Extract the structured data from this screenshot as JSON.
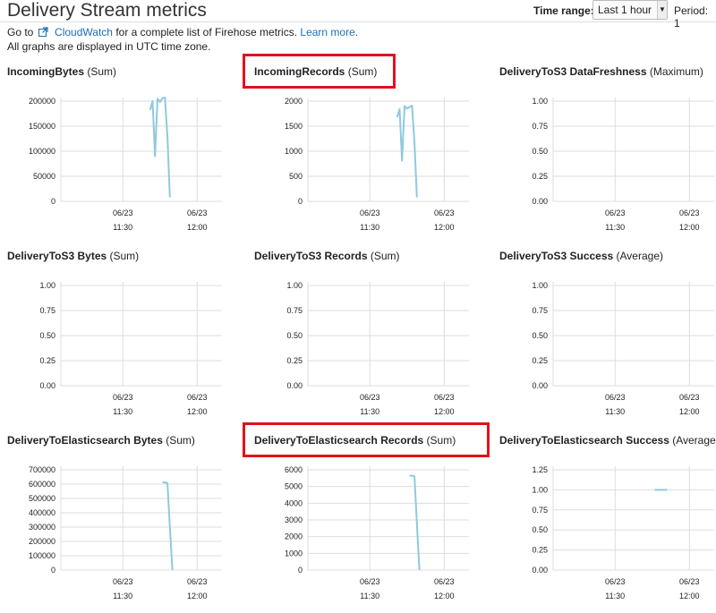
{
  "header": {
    "title": "Delivery Stream metrics",
    "time_range_label": "Time range:",
    "time_range_value": "Last 1 hour",
    "period_label": "Period:",
    "period_value": "1"
  },
  "intro": {
    "goto_prefix": "Go to",
    "cloudwatch_link": "CloudWatch",
    "goto_suffix": "for a complete list of Firehose metrics.",
    "learn_more_link": "Learn more.",
    "utc_note": "All graphs are displayed in UTC time zone."
  },
  "colors": {
    "line": "#8ec9e0",
    "grid": "#dddddd",
    "highlight": "#e0131b",
    "link": "#1a6eb5"
  },
  "x_axis": {
    "ticks": [
      {
        "date": "06/23",
        "time": "11:30"
      },
      {
        "date": "06/23",
        "time": "12:00"
      }
    ]
  },
  "panels": [
    {
      "metric": "IncomingBytes",
      "stat": "(Sum)",
      "highlighted": false
    },
    {
      "metric": "IncomingRecords",
      "stat": "(Sum)",
      "highlighted": true
    },
    {
      "metric": "DeliveryToS3 DataFreshness",
      "stat": "(Maximum)",
      "highlighted": false
    },
    {
      "metric": "DeliveryToS3 Bytes",
      "stat": "(Sum)",
      "highlighted": false
    },
    {
      "metric": "DeliveryToS3 Records",
      "stat": "(Sum)",
      "highlighted": false
    },
    {
      "metric": "DeliveryToS3 Success",
      "stat": "(Average)",
      "highlighted": false
    },
    {
      "metric": "DeliveryToElasticsearch Bytes",
      "stat": "(Sum)",
      "highlighted": false
    },
    {
      "metric": "DeliveryToElasticsearch Records",
      "stat": "(Sum)",
      "highlighted": true
    },
    {
      "metric": "DeliveryToElasticsearch Success",
      "stat": "(Average)",
      "highlighted": false
    }
  ],
  "chart_data": [
    {
      "type": "line",
      "title": "IncomingBytes (Sum)",
      "x_ticks": [
        "06/23 11:30",
        "06/23 12:00"
      ],
      "y_ticks": [
        "0",
        "50000",
        "100000",
        "150000",
        "200000"
      ],
      "ylim": [
        0,
        200000
      ],
      "series": [
        {
          "x": [
            "11:41",
            "11:42",
            "11:43",
            "11:44",
            "11:45",
            "11:46",
            "11:47",
            "11:48",
            "11:49"
          ],
          "y": [
            182000,
            200000,
            90000,
            205000,
            198000,
            206000,
            207000,
            128000,
            8000
          ]
        }
      ]
    },
    {
      "type": "line",
      "title": "IncomingRecords (Sum)",
      "x_ticks": [
        "06/23 11:30",
        "06/23 12:00"
      ],
      "y_ticks": [
        "0",
        "500",
        "1000",
        "1500",
        "2000"
      ],
      "ylim": [
        0,
        2000
      ],
      "series": [
        {
          "x": [
            "11:41",
            "11:42",
            "11:43",
            "11:44",
            "11:45",
            "11:46",
            "11:47",
            "11:48",
            "11:49"
          ],
          "y": [
            1680,
            1840,
            810,
            1900,
            1850,
            1880,
            1910,
            1180,
            80
          ]
        }
      ]
    },
    {
      "type": "line",
      "title": "DeliveryToS3 DataFreshness (Maximum)",
      "x_ticks": [
        "06/23 11:30",
        "06/23 12:00"
      ],
      "y_ticks": [
        "0.00",
        "0.25",
        "0.50",
        "0.75",
        "1.00"
      ],
      "ylim": [
        0,
        1
      ],
      "series": []
    },
    {
      "type": "line",
      "title": "DeliveryToS3 Bytes (Sum)",
      "x_ticks": [
        "06/23 11:30",
        "06/23 12:00"
      ],
      "y_ticks": [
        "0.00",
        "0.25",
        "0.50",
        "0.75",
        "1.00"
      ],
      "ylim": [
        0,
        1
      ],
      "series": []
    },
    {
      "type": "line",
      "title": "DeliveryToS3 Records (Sum)",
      "x_ticks": [
        "06/23 11:30",
        "06/23 12:00"
      ],
      "y_ticks": [
        "0.00",
        "0.25",
        "0.50",
        "0.75",
        "1.00"
      ],
      "ylim": [
        0,
        1
      ],
      "series": []
    },
    {
      "type": "line",
      "title": "DeliveryToS3 Success (Average)",
      "x_ticks": [
        "06/23 11:30",
        "06/23 12:00"
      ],
      "y_ticks": [
        "0.00",
        "0.25",
        "0.50",
        "0.75",
        "1.00"
      ],
      "ylim": [
        0,
        1
      ],
      "series": []
    },
    {
      "type": "line",
      "title": "DeliveryToElasticsearch Bytes (Sum)",
      "x_ticks": [
        "06/23 11:30",
        "06/23 12:00"
      ],
      "y_ticks": [
        "0",
        "100000",
        "200000",
        "300000",
        "400000",
        "500000",
        "600000",
        "700000"
      ],
      "ylim": [
        0,
        700000
      ],
      "series": [
        {
          "x": [
            "11:46",
            "11:47",
            "11:48",
            "11:49",
            "11:50"
          ],
          "y": [
            612000,
            612000,
            608000,
            300000,
            0
          ]
        }
      ]
    },
    {
      "type": "line",
      "title": "DeliveryToElasticsearch Records (Sum)",
      "x_ticks": [
        "06/23 11:30",
        "06/23 12:00"
      ],
      "y_ticks": [
        "0",
        "1000",
        "2000",
        "3000",
        "4000",
        "5000",
        "6000"
      ],
      "ylim": [
        0,
        6000
      ],
      "series": [
        {
          "x": [
            "11:46",
            "11:47",
            "11:48",
            "11:49",
            "11:50"
          ],
          "y": [
            5650,
            5650,
            5600,
            2800,
            0
          ]
        }
      ]
    },
    {
      "type": "line",
      "title": "DeliveryToElasticsearch Success (Average)",
      "x_ticks": [
        "06/23 11:30",
        "06/23 12:00"
      ],
      "y_ticks": [
        "0.00",
        "0.25",
        "0.50",
        "0.75",
        "1.00",
        "1.25"
      ],
      "ylim": [
        0,
        1.25
      ],
      "series": [
        {
          "x": [
            "11:46",
            "11:47",
            "11:48",
            "11:49",
            "11:50",
            "11:51"
          ],
          "y": [
            1,
            1,
            1,
            1,
            1,
            1
          ]
        }
      ]
    }
  ]
}
